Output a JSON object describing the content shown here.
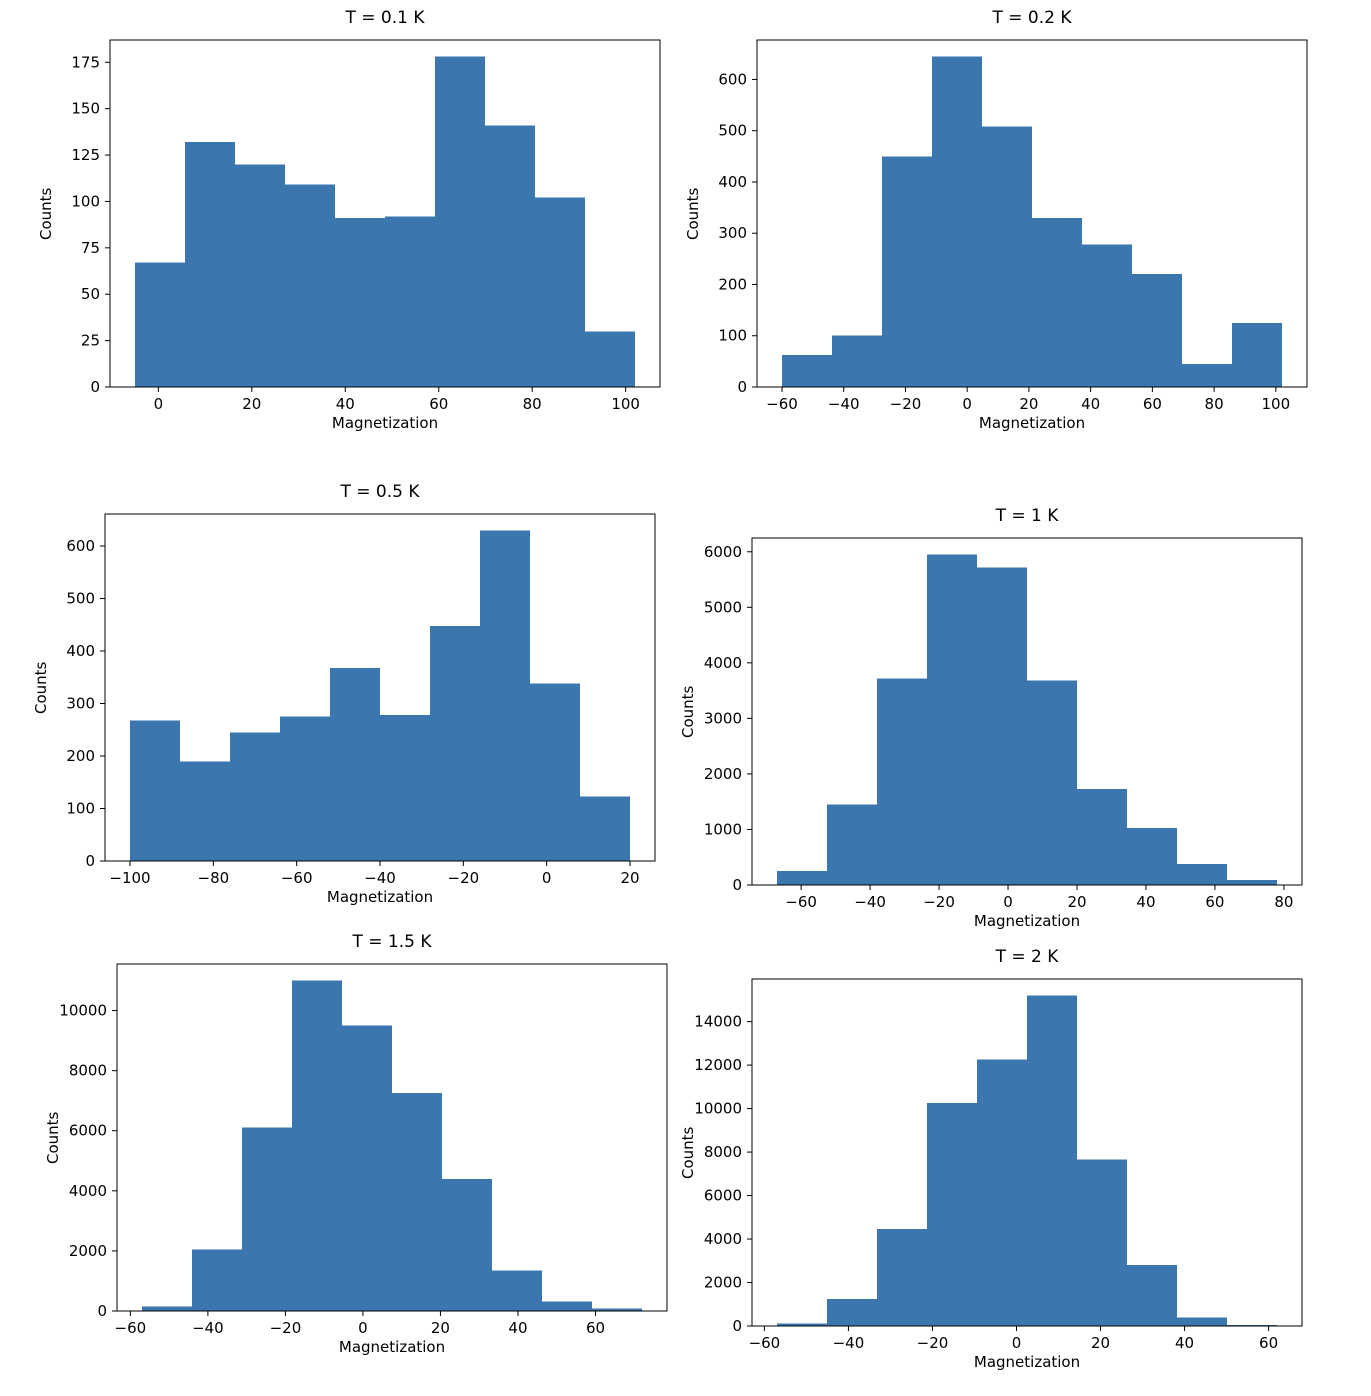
{
  "figure": {
    "background": "#ffffff",
    "bar_color": "#3b76af",
    "axis_color": "#000000",
    "text_color": "#000000"
  },
  "chart_data": [
    {
      "type": "bar",
      "subtype": "histogram",
      "title": "T = 0.1 K",
      "xlabel": "Magnetization",
      "ylabel": "Counts",
      "bar_color": "#3b76af",
      "bin_start": -5,
      "bin_width": 10.7,
      "values": [
        67,
        132,
        120,
        109,
        91,
        92,
        178,
        141,
        102,
        30
      ],
      "xticks": [
        0,
        20,
        40,
        60,
        80,
        100
      ],
      "yticks": [
        0,
        25,
        50,
        75,
        100,
        125,
        150,
        175
      ],
      "xlim": [
        -10.35,
        107.35
      ],
      "ylim": [
        0,
        187
      ]
    },
    {
      "type": "bar",
      "subtype": "histogram",
      "title": "T = 0.2 K",
      "xlabel": "Magnetization",
      "ylabel": "Counts",
      "bar_color": "#3b76af",
      "bin_start": -60,
      "bin_width": 16.2,
      "values": [
        62,
        100,
        450,
        645,
        508,
        330,
        278,
        220,
        45,
        125
      ],
      "xticks": [
        -60,
        -40,
        -20,
        0,
        20,
        40,
        60,
        80,
        100
      ],
      "yticks": [
        0,
        100,
        200,
        300,
        400,
        500,
        600
      ],
      "xlim": [
        -68.1,
        110.1
      ],
      "ylim": [
        0,
        677
      ]
    },
    {
      "type": "bar",
      "subtype": "histogram",
      "title": "T = 0.5 K",
      "xlabel": "Magnetization",
      "ylabel": "Counts",
      "bar_color": "#3b76af",
      "bin_start": -100,
      "bin_width": 12,
      "values": [
        268,
        190,
        245,
        275,
        368,
        278,
        448,
        630,
        338,
        123
      ],
      "xticks": [
        -100,
        -80,
        -60,
        -40,
        -20,
        0,
        20
      ],
      "yticks": [
        0,
        100,
        200,
        300,
        400,
        500,
        600
      ],
      "xlim": [
        -106,
        26
      ],
      "ylim": [
        0,
        661
      ]
    },
    {
      "type": "bar",
      "subtype": "histogram",
      "title": "T = 1 K",
      "xlabel": "Magnetization",
      "ylabel": "Counts",
      "bar_color": "#3b76af",
      "bin_start": -67,
      "bin_width": 14.5,
      "values": [
        250,
        1450,
        3720,
        5950,
        5720,
        3680,
        1730,
        1030,
        380,
        90
      ],
      "xticks": [
        -60,
        -40,
        -20,
        0,
        20,
        40,
        60,
        80
      ],
      "yticks": [
        0,
        1000,
        2000,
        3000,
        4000,
        5000,
        6000
      ],
      "xlim": [
        -74.25,
        85.25
      ],
      "ylim": [
        0,
        6248
      ]
    },
    {
      "type": "bar",
      "subtype": "histogram",
      "title": "T = 1.5 K",
      "xlabel": "Magnetization",
      "ylabel": "Counts",
      "bar_color": "#3b76af",
      "bin_start": -57,
      "bin_width": 12.9,
      "values": [
        150,
        2050,
        6100,
        11000,
        9500,
        7250,
        4400,
        1350,
        320,
        80
      ],
      "xticks": [
        -60,
        -40,
        -20,
        0,
        20,
        40,
        60
      ],
      "yticks": [
        0,
        2000,
        4000,
        6000,
        8000,
        10000
      ],
      "xlim": [
        -63.45,
        78.45
      ],
      "ylim": [
        0,
        11550
      ]
    },
    {
      "type": "bar",
      "subtype": "histogram",
      "title": "T = 2 K",
      "xlabel": "Magnetization",
      "ylabel": "Counts",
      "bar_color": "#3b76af",
      "bin_start": -57,
      "bin_width": 11.9,
      "values": [
        120,
        1250,
        4450,
        10250,
        12250,
        15200,
        7650,
        2800,
        400,
        50
      ],
      "xticks": [
        -60,
        -40,
        -20,
        0,
        20,
        40,
        60
      ],
      "yticks": [
        0,
        2000,
        4000,
        6000,
        8000,
        10000,
        12000,
        14000
      ],
      "xlim": [
        -62.95,
        67.95
      ],
      "ylim": [
        0,
        15960
      ]
    }
  ]
}
